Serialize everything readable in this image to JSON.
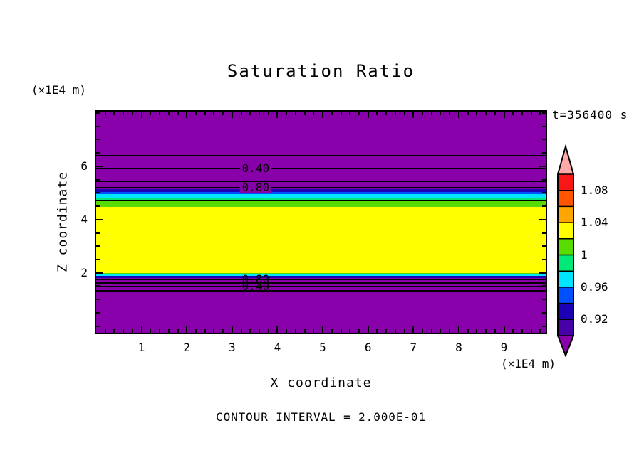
{
  "title": "Saturation Ratio",
  "timestamp": "t=356400 s",
  "footer_note": "CONTOUR INTERVAL = 2.000E-01",
  "x_axis": {
    "label": "X coordinate",
    "unit": "(×1E4 m)",
    "tick_labels": [
      1,
      2,
      3,
      4,
      5,
      6,
      7,
      8,
      9
    ]
  },
  "y_axis": {
    "label": "Z coordinate",
    "unit": "(×1E4 m)",
    "tick_labels": [
      2,
      4,
      6
    ]
  },
  "chart_data": {
    "type": "heatmap",
    "subtype": "filled-contour",
    "quantity": "Saturation Ratio",
    "time_label": "t=356400 s",
    "contour_interval": 0.2,
    "x_range_1e4_m": [
      0,
      9.92
    ],
    "z_range_1e4_m": [
      -0.25,
      8.05
    ],
    "x_minor_step": 0.2,
    "z_minor_step": 0.5,
    "background_color": "#8800AA",
    "bands": [
      {
        "saturation_ratio": "0.92-0.94",
        "color": "#1C00B4",
        "z": [
          5.03,
          5.14
        ]
      },
      {
        "saturation_ratio": "0.94-0.96",
        "color": "#0050FF",
        "z": [
          4.95,
          5.03
        ]
      },
      {
        "saturation_ratio": "0.96-0.98",
        "color": "#00E5FF",
        "z": [
          4.79,
          4.95
        ]
      },
      {
        "saturation_ratio": "0.98-1.00",
        "color": "#00E878",
        "z": [
          4.73,
          4.79
        ]
      },
      {
        "saturation_ratio": "1.00-1.02",
        "color": "#58DC00",
        "z": [
          4.47,
          4.73
        ]
      },
      {
        "saturation_ratio": "1.02-1.04",
        "color": "#FFFF00",
        "z": [
          1.99,
          4.47
        ]
      },
      {
        "saturation_ratio": "1.00-1.02",
        "color": "#58DC00",
        "z": [
          1.93,
          1.99
        ]
      },
      {
        "saturation_ratio": "0.96-0.98",
        "color": "#00E5FF",
        "z": [
          1.89,
          1.93
        ]
      },
      {
        "saturation_ratio": "0.92-0.94",
        "color": "#1C00B4",
        "z": [
          1.8,
          1.89
        ]
      }
    ],
    "contour_lines": [
      {
        "level": 0.2,
        "z": 6.42,
        "w": 1
      },
      {
        "level": 0.4,
        "z": 5.91,
        "w": 2,
        "label": "0.40",
        "label_bg": true
      },
      {
        "level": 0.6,
        "z": 5.43,
        "w": 2
      },
      {
        "level": 0.8,
        "z": 5.2,
        "w": 2,
        "label": "0.80",
        "label_bg": true
      },
      {
        "level": 1.0,
        "z": 4.71,
        "w": 2
      },
      {
        "level": 1.0,
        "z": 1.95,
        "w": 1
      },
      {
        "level": 0.8,
        "z": 1.75,
        "w": 2,
        "label": "0.80",
        "label_bg": false
      },
      {
        "level": 0.6,
        "z": 1.62,
        "w": 2
      },
      {
        "level": 0.4,
        "z": 1.48,
        "w": 2,
        "label": "0.40",
        "label_bg": false
      },
      {
        "level": 0.2,
        "z": 1.33,
        "w": 2
      }
    ],
    "contour_label_x": 3.52,
    "colorbar": {
      "labels": [
        "1.08",
        "1.04",
        "1",
        "0.96",
        "0.92"
      ],
      "overflow_high_color": "#FFA8A8",
      "underflow_low_color": "#8800AA",
      "segment_colors_high_to_low": [
        "#F81616",
        "#FF5500",
        "#FFA500",
        "#FFFF00",
        "#58DC00",
        "#00E878",
        "#00E5FF",
        "#0050FF",
        "#1C00B4",
        "#4700A8"
      ]
    }
  }
}
